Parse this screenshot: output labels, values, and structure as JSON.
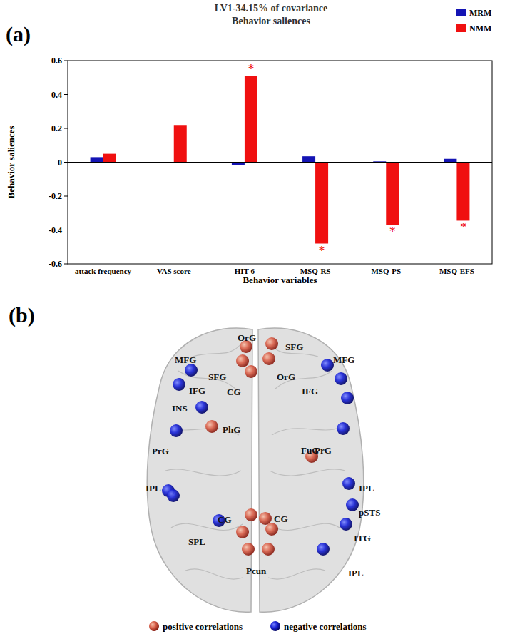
{
  "chart_data": {
    "type": "bar",
    "panel_label": "(a)",
    "title": "LV1-34.15% of covariance",
    "subtitle": "Behavior saliences",
    "x_label": "Behavior variables",
    "y_label": "Behavior saliences",
    "categories": [
      "attack frequency",
      "VAS score",
      "HIT-6",
      "MSQ-RS",
      "MSQ-PS",
      "MSQ-EFS"
    ],
    "series": [
      {
        "name": "MRM",
        "color": "#1414b4",
        "values": [
          0.03,
          -0.005,
          -0.015,
          0.035,
          0.005,
          0.02
        ]
      },
      {
        "name": "NMM",
        "color": "#f01010",
        "values": [
          0.05,
          0.22,
          0.51,
          -0.48,
          -0.37,
          -0.345
        ],
        "significance": [
          null,
          null,
          "*",
          "*",
          "*",
          "*"
        ]
      }
    ],
    "ylim": [
      -0.6,
      0.6
    ],
    "yticks": [
      -0.6,
      -0.4,
      -0.2,
      0,
      0.2,
      0.4,
      0.6
    ],
    "grid": false,
    "legend": "top-right"
  },
  "brain_map": {
    "panel_label": "(b)",
    "nodes": [
      {
        "label": "OrG",
        "correlation": "positive"
      },
      {
        "label": "SFG",
        "correlation": "positive"
      },
      {
        "label": "SFG",
        "correlation": "positive"
      },
      {
        "label": "OrG",
        "correlation": "positive"
      },
      {
        "label": "CG",
        "correlation": "positive"
      },
      {
        "label": "PhG",
        "correlation": "positive"
      },
      {
        "label": "FuG",
        "correlation": "positive"
      },
      {
        "label": "CG",
        "correlation": "positive"
      },
      {
        "label": "CG",
        "correlation": "positive"
      },
      {
        "label": null,
        "correlation": "positive"
      },
      {
        "label": null,
        "correlation": "positive"
      },
      {
        "label": "Pcun",
        "correlation": "positive"
      },
      {
        "label": null,
        "correlation": "positive"
      },
      {
        "label": "MFG",
        "correlation": "negative"
      },
      {
        "label": "MFG",
        "correlation": "negative"
      },
      {
        "label": "IFG",
        "correlation": "negative"
      },
      {
        "label": "IFG",
        "correlation": "negative"
      },
      {
        "label": null,
        "correlation": "negative"
      },
      {
        "label": "INS",
        "correlation": "negative"
      },
      {
        "label": "PrG",
        "correlation": "negative"
      },
      {
        "label": "PrG",
        "correlation": "negative"
      },
      {
        "label": "IPL",
        "correlation": "negative"
      },
      {
        "label": null,
        "correlation": "negative"
      },
      {
        "label": "IPL",
        "correlation": "negative"
      },
      {
        "label": "SPL",
        "correlation": "negative"
      },
      {
        "label": "pSTS",
        "correlation": "negative"
      },
      {
        "label": "ITG",
        "correlation": "negative"
      },
      {
        "label": "IPL",
        "correlation": "negative"
      }
    ],
    "legend": [
      {
        "text": "positive correlations",
        "correlation": "positive"
      },
      {
        "text": "negative correlations",
        "correlation": "negative"
      }
    ]
  }
}
